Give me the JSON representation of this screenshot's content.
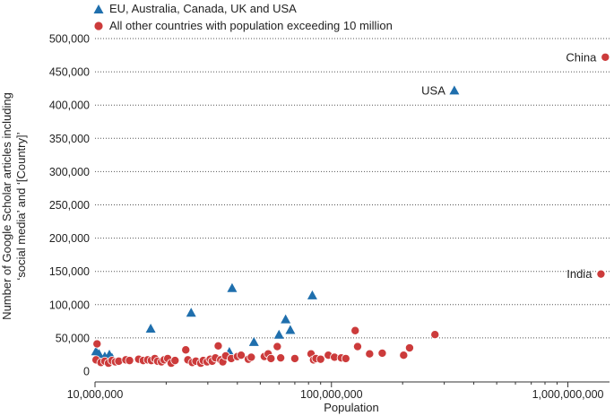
{
  "chart_data": {
    "type": "scatter",
    "xlabel": "Population",
    "ylabel_line1": "Number of Google Scholar articles including",
    "ylabel_line2": "‘social media’ and ‘[Country]’",
    "x_scale": "log",
    "xlim": [
      10000000,
      1500000000
    ],
    "ylim": [
      0,
      500000
    ],
    "x_ticks": [
      10000000,
      100000000,
      1000000000
    ],
    "x_tick_labels": [
      "10,000,000",
      "100,000,000",
      "1,000,000,000"
    ],
    "y_ticks": [
      0,
      50000,
      100000,
      150000,
      200000,
      250000,
      300000,
      350000,
      400000,
      450000,
      500000
    ],
    "y_tick_labels": [
      "0",
      "50,000",
      "100,000",
      "150,000",
      "200,000",
      "250,000",
      "300,000",
      "350,000",
      "400,000",
      "450,000",
      "500,000"
    ],
    "grid": "horizontal dotted",
    "series": [
      {
        "name": "EU, Australia, Canada, UK and USA",
        "marker": "triangle",
        "color": "#1f6fad",
        "points": [
          {
            "x": 10100000,
            "y": 30000
          },
          {
            "x": 10400000,
            "y": 26000
          },
          {
            "x": 11000000,
            "y": 22000
          },
          {
            "x": 11500000,
            "y": 25000
          },
          {
            "x": 11800000,
            "y": 20000
          },
          {
            "x": 17200000,
            "y": 64000
          },
          {
            "x": 25500000,
            "y": 88000
          },
          {
            "x": 37000000,
            "y": 29000
          },
          {
            "x": 38000000,
            "y": 125000
          },
          {
            "x": 47000000,
            "y": 44000
          },
          {
            "x": 60000000,
            "y": 55000
          },
          {
            "x": 64000000,
            "y": 78000
          },
          {
            "x": 67000000,
            "y": 62000
          },
          {
            "x": 83000000,
            "y": 114000
          },
          {
            "x": 331000000,
            "y": 422000,
            "label": "USA"
          }
        ]
      },
      {
        "name": "All other countries with population exceeding 10 million",
        "marker": "circle",
        "color": "#cc3b3b",
        "points": [
          {
            "x": 10200000,
            "y": 41000
          },
          {
            "x": 10100000,
            "y": 17000
          },
          {
            "x": 10600000,
            "y": 13000
          },
          {
            "x": 11000000,
            "y": 15000
          },
          {
            "x": 11400000,
            "y": 12000
          },
          {
            "x": 11800000,
            "y": 16000
          },
          {
            "x": 12200000,
            "y": 14000
          },
          {
            "x": 12600000,
            "y": 15000
          },
          {
            "x": 13500000,
            "y": 17000
          },
          {
            "x": 14000000,
            "y": 16000
          },
          {
            "x": 15300000,
            "y": 18000
          },
          {
            "x": 16000000,
            "y": 16000
          },
          {
            "x": 16700000,
            "y": 17000
          },
          {
            "x": 17300000,
            "y": 16000
          },
          {
            "x": 17900000,
            "y": 19000
          },
          {
            "x": 18400000,
            "y": 15000
          },
          {
            "x": 19100000,
            "y": 14000
          },
          {
            "x": 19600000,
            "y": 17000
          },
          {
            "x": 20300000,
            "y": 19000
          },
          {
            "x": 21000000,
            "y": 12000
          },
          {
            "x": 21800000,
            "y": 16000
          },
          {
            "x": 24200000,
            "y": 32000
          },
          {
            "x": 24700000,
            "y": 17000
          },
          {
            "x": 25800000,
            "y": 13000
          },
          {
            "x": 26700000,
            "y": 15000
          },
          {
            "x": 28000000,
            "y": 12000
          },
          {
            "x": 28700000,
            "y": 16000
          },
          {
            "x": 29800000,
            "y": 14000
          },
          {
            "x": 30700000,
            "y": 18000
          },
          {
            "x": 31300000,
            "y": 15000
          },
          {
            "x": 32300000,
            "y": 20000
          },
          {
            "x": 33200000,
            "y": 38000
          },
          {
            "x": 34000000,
            "y": 17000
          },
          {
            "x": 34700000,
            "y": 14000
          },
          {
            "x": 35700000,
            "y": 23000
          },
          {
            "x": 37700000,
            "y": 19000
          },
          {
            "x": 40000000,
            "y": 22000
          },
          {
            "x": 41500000,
            "y": 24000
          },
          {
            "x": 44500000,
            "y": 18000
          },
          {
            "x": 45800000,
            "y": 21000
          },
          {
            "x": 52000000,
            "y": 22000
          },
          {
            "x": 54000000,
            "y": 26000
          },
          {
            "x": 55500000,
            "y": 19000
          },
          {
            "x": 59000000,
            "y": 37000
          },
          {
            "x": 61000000,
            "y": 20000
          },
          {
            "x": 70000000,
            "y": 19000
          },
          {
            "x": 82000000,
            "y": 26000
          },
          {
            "x": 84000000,
            "y": 17000
          },
          {
            "x": 86000000,
            "y": 19000
          },
          {
            "x": 90000000,
            "y": 18000
          },
          {
            "x": 97000000,
            "y": 24000
          },
          {
            "x": 103000000,
            "y": 21000
          },
          {
            "x": 110000000,
            "y": 20000
          },
          {
            "x": 115000000,
            "y": 19000
          },
          {
            "x": 126000000,
            "y": 61000
          },
          {
            "x": 129000000,
            "y": 37000
          },
          {
            "x": 145000000,
            "y": 26000
          },
          {
            "x": 164000000,
            "y": 27000
          },
          {
            "x": 202000000,
            "y": 24000
          },
          {
            "x": 214000000,
            "y": 35000
          },
          {
            "x": 274000000,
            "y": 55000
          },
          {
            "x": 1380000000,
            "y": 146000,
            "label": "India"
          },
          {
            "x": 1440000000,
            "y": 472000,
            "label": "China"
          }
        ]
      }
    ]
  }
}
